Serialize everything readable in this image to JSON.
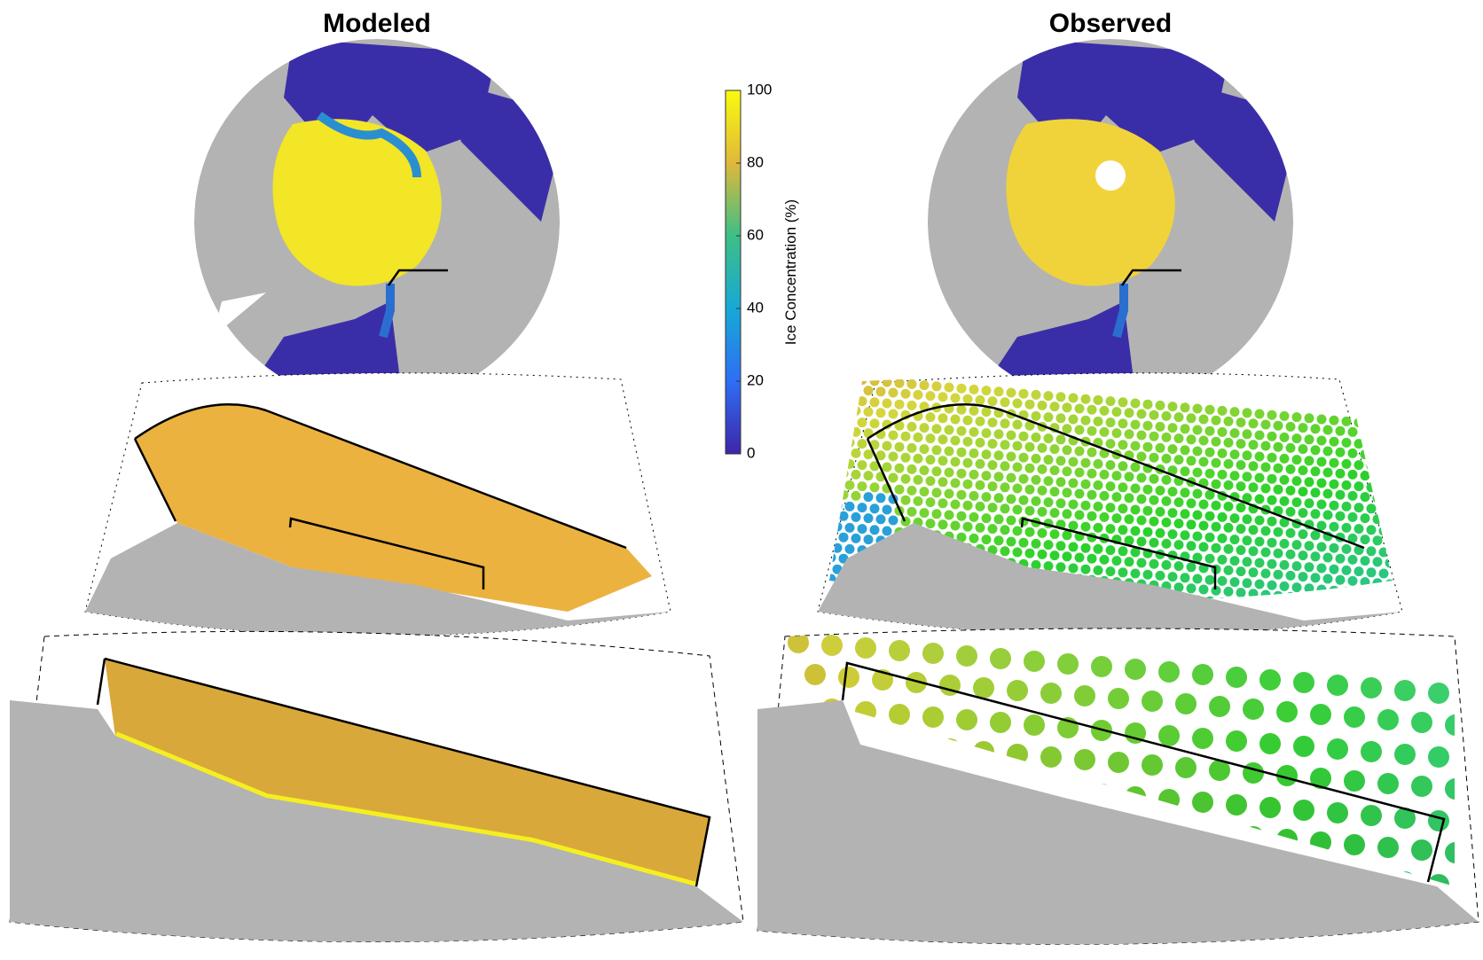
{
  "panels": {
    "left_title": "Modeled",
    "right_title": "Observed"
  },
  "colorbar": {
    "label": "Ice Concentration (%)",
    "lim": [
      0,
      100
    ],
    "ticks": [
      0,
      20,
      40,
      60,
      80,
      100
    ]
  }
}
